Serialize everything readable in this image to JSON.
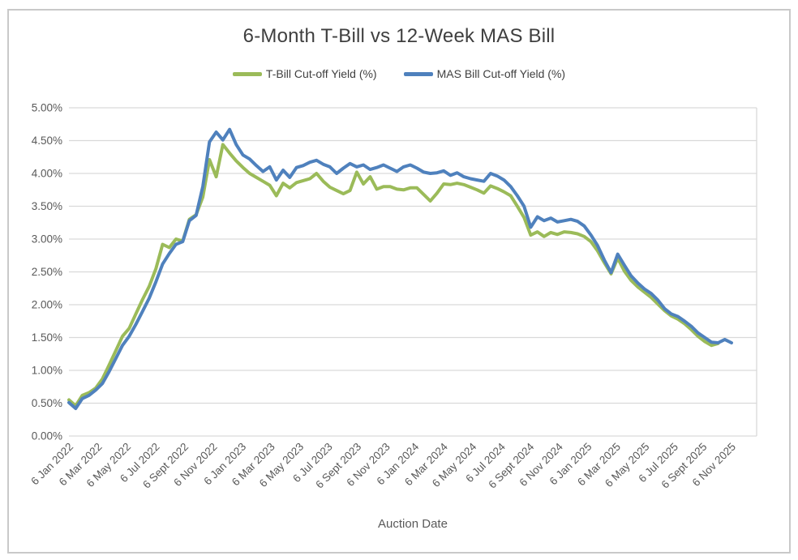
{
  "chart_data": {
    "type": "line",
    "title": "6-Month T-Bill vs 12-Week MAS Bill",
    "xlabel": "Auction Date",
    "ylabel": "",
    "ylim": [
      0,
      5
    ],
    "grid": "horizontal",
    "legend_position": "top",
    "y_ticks": [
      "0.00%",
      "0.50%",
      "1.00%",
      "1.50%",
      "2.00%",
      "2.50%",
      "3.00%",
      "3.50%",
      "4.00%",
      "4.50%",
      "5.00%"
    ],
    "x_tick_labels": [
      "6 Jan 2022",
      "6 Mar 2022",
      "6 May 2022",
      "6 Jul 2022",
      "6 Sept 2022",
      "6 Nov 2022",
      "6 Jan 2023",
      "6 Mar 2023",
      "6 May 2023",
      "6 Jul 2023",
      "6 Sept 2023",
      "6 Nov 2023",
      "6 Jan 2024",
      "6 Mar 2024",
      "6 May 2024",
      "6 Jul 2024",
      "6 Sept 2024",
      "6 Nov 2024",
      "6 Jan 2025",
      "6 Mar 2025",
      "6 May 2025",
      "6 Jul 2025",
      "6 Sept 2025",
      "6 Nov 2025"
    ],
    "colors": {
      "tbill": "#9BBB59",
      "mas": "#4F81BD",
      "gridline": "#D9D9D9",
      "axis_text": "#595959",
      "title_text": "#3F3F3F"
    },
    "series": [
      {
        "name": "T-Bill Cut-off Yield (%)",
        "color_key": "tbill",
        "values": [
          0.55,
          0.46,
          0.62,
          0.66,
          0.73,
          0.87,
          1.08,
          1.3,
          1.52,
          1.64,
          1.86,
          2.08,
          2.28,
          2.55,
          2.92,
          2.87,
          3.0,
          2.97,
          3.3,
          3.37,
          3.64,
          4.21,
          3.95,
          4.44,
          4.31,
          4.19,
          4.09,
          4.0,
          3.94,
          3.88,
          3.82,
          3.66,
          3.85,
          3.78,
          3.86,
          3.89,
          3.92,
          4.0,
          3.88,
          3.79,
          3.74,
          3.69,
          3.74,
          4.02,
          3.84,
          3.95,
          3.76,
          3.8,
          3.8,
          3.76,
          3.75,
          3.78,
          3.78,
          3.68,
          3.58,
          3.7,
          3.84,
          3.83,
          3.85,
          3.83,
          3.79,
          3.75,
          3.7,
          3.81,
          3.77,
          3.72,
          3.66,
          3.5,
          3.33,
          3.06,
          3.11,
          3.04,
          3.1,
          3.07,
          3.11,
          3.1,
          3.08,
          3.04,
          2.96,
          2.82,
          2.64,
          2.47,
          2.71,
          2.51,
          2.37,
          2.27,
          2.19,
          2.11,
          2.01,
          1.91,
          1.83,
          1.78,
          1.71,
          1.62,
          1.52,
          1.44,
          1.38,
          1.41,
          null,
          null
        ]
      },
      {
        "name": "MAS Bill Cut-off Yield (%)",
        "color_key": "mas",
        "values": [
          0.51,
          0.42,
          0.57,
          0.62,
          0.7,
          0.8,
          0.98,
          1.18,
          1.38,
          1.52,
          1.7,
          1.9,
          2.1,
          2.35,
          2.62,
          2.78,
          2.92,
          2.96,
          3.28,
          3.36,
          3.8,
          4.48,
          4.63,
          4.51,
          4.67,
          4.44,
          4.28,
          4.22,
          4.12,
          4.03,
          4.1,
          3.9,
          4.05,
          3.94,
          4.09,
          4.12,
          4.17,
          4.2,
          4.14,
          4.1,
          4.0,
          4.08,
          4.15,
          4.1,
          4.13,
          4.06,
          4.09,
          4.13,
          4.08,
          4.03,
          4.1,
          4.13,
          4.08,
          4.02,
          4.0,
          4.01,
          4.04,
          3.97,
          4.01,
          3.95,
          3.92,
          3.9,
          3.88,
          4.0,
          3.96,
          3.9,
          3.8,
          3.66,
          3.5,
          3.18,
          3.34,
          3.28,
          3.32,
          3.26,
          3.28,
          3.3,
          3.27,
          3.2,
          3.06,
          2.9,
          2.68,
          2.49,
          2.77,
          2.6,
          2.44,
          2.33,
          2.24,
          2.17,
          2.07,
          1.94,
          1.86,
          1.82,
          1.75,
          1.67,
          1.57,
          1.5,
          1.43,
          1.42,
          1.47,
          1.42
        ]
      }
    ]
  }
}
